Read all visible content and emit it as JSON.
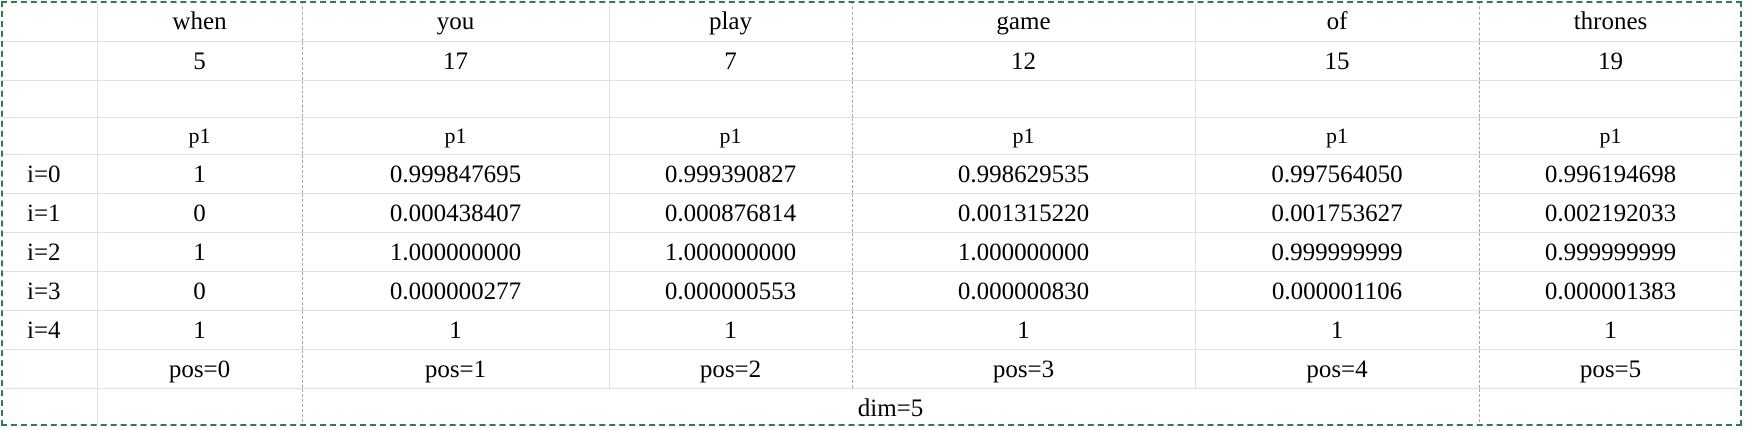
{
  "header": {
    "words": [
      "when",
      "you",
      "play",
      "game",
      "of",
      "thrones"
    ],
    "ids": [
      "5",
      "17",
      "7",
      "12",
      "15",
      "19"
    ]
  },
  "p1_labels": [
    "p1",
    "p1",
    "p1",
    "p1",
    "p1",
    "p1"
  ],
  "rows": [
    {
      "label": "i=0",
      "values": [
        "1",
        "0.999847695",
        "0.999390827",
        "0.998629535",
        "0.997564050",
        "0.996194698"
      ]
    },
    {
      "label": "i=1",
      "values": [
        "0",
        "0.000438407",
        "0.000876814",
        "0.001315220",
        "0.001753627",
        "0.002192033"
      ]
    },
    {
      "label": "i=2",
      "values": [
        "1",
        "1.000000000",
        "1.000000000",
        "1.000000000",
        "0.999999999",
        "0.999999999"
      ]
    },
    {
      "label": "i=3",
      "values": [
        "0",
        "0.000000277",
        "0.000000553",
        "0.000000830",
        "0.000001106",
        "0.000001383"
      ]
    },
    {
      "label": "i=4",
      "values": [
        "1",
        "1",
        "1",
        "1",
        "1",
        "1"
      ]
    }
  ],
  "positions": [
    "pos=0",
    "pos=1",
    "pos=2",
    "pos=3",
    "pos=4",
    "pos=5"
  ],
  "footer": {
    "dim": "dim=5"
  },
  "colors": {
    "border_dashed": "#2e7d4f",
    "gridline": "#e0e0e0",
    "section_divider": "#a8a8a8"
  }
}
